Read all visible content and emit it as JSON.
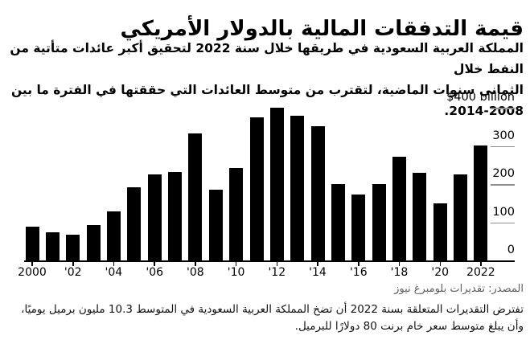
{
  "title": "قيمة التدفقات المالية بالدولار الأمريكي",
  "subtitle": {
    "line1": "المملكة العربية السعودية في طريقها خلال سنة 2022 لتحقيق أكبر عائدات متأتية من النفط خلال",
    "line2": "الثماني سنوات الماضية، لتقترب من متوسط العائدات التي حققتها في الفترة ما بين 2008-2014."
  },
  "chart_data": {
    "type": "bar",
    "title": "قيمة التدفقات المالية بالدولار الأمريكي",
    "categories": [
      "2000",
      "2001",
      "2002",
      "2003",
      "2004",
      "2005",
      "2006",
      "2007",
      "2008",
      "2009",
      "2010",
      "2011",
      "2012",
      "2013",
      "2014",
      "2015",
      "2016",
      "2017",
      "2018",
      "2019",
      "2020",
      "2021",
      "2022"
    ],
    "values": [
      88,
      74,
      68,
      93,
      128,
      192,
      225,
      232,
      333,
      185,
      243,
      375,
      400,
      380,
      352,
      200,
      172,
      201,
      272,
      230,
      149,
      225,
      302
    ],
    "ylabel": "$400 billion",
    "ylim": [
      0,
      420
    ],
    "grid": false,
    "legend": "none",
    "bar_color": "#000000",
    "x_tick_labels": [
      "2000",
      "'02",
      "'04",
      "'06",
      "'08",
      "'10",
      "'12",
      "'14",
      "'16",
      "'18",
      "'20",
      "2022"
    ],
    "y_axis": {
      "zero_label": "0",
      "ticks": [
        {
          "value": 100,
          "label": "100"
        },
        {
          "value": 200,
          "label": "200"
        },
        {
          "value": 300,
          "label": "300"
        },
        {
          "value": 400,
          "label": "$400 billion"
        }
      ]
    }
  },
  "source": "المصدر: تقديرات بلومبرغ نيوز",
  "footnote": {
    "line1": "تفترض التقديرات المتعلقة بسنة 2022 أن تضخ المملكة العربية السعودية في المتوسط 10.3 مليون برميل يوميًا،",
    "line2": "وأن يبلغ متوسط سعر خام برنت 80 دولارًا للبرميل."
  },
  "colors": {
    "background": "#ffffff",
    "bar": "#000000",
    "axis_line": "#000000",
    "tick_line": "#8f8f8f",
    "source_text": "#5f5f5f",
    "text": "#000000"
  }
}
